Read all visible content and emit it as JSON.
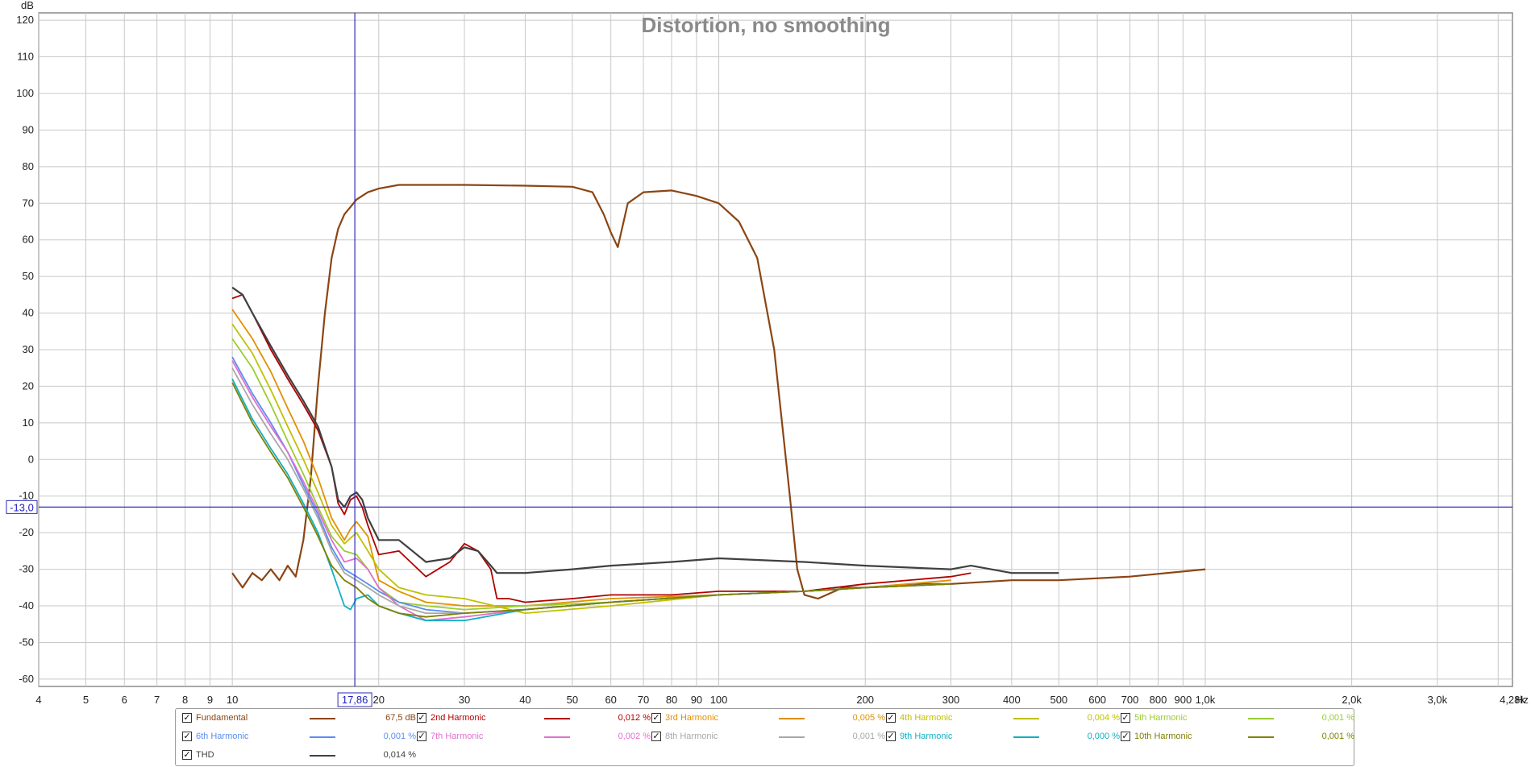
{
  "chart_data": {
    "type": "line",
    "title": "Distortion, no smoothing",
    "ylabel": "dB",
    "xlabel": "Hz",
    "x_scale": "log",
    "xlim": [
      4,
      4280
    ],
    "ylim": [
      -62,
      122
    ],
    "grid": true,
    "y_ticks": [
      "120",
      "110",
      "100",
      "90",
      "80",
      "70",
      "60",
      "50",
      "40",
      "30",
      "20",
      "10",
      "0",
      "-10",
      "-20",
      "-30",
      "-40",
      "-50",
      "-60"
    ],
    "x_ticks": [
      {
        "v": 4,
        "label": "4"
      },
      {
        "v": 5,
        "label": "5"
      },
      {
        "v": 6,
        "label": "6"
      },
      {
        "v": 7,
        "label": "7"
      },
      {
        "v": 8,
        "label": "8"
      },
      {
        "v": 9,
        "label": "9"
      },
      {
        "v": 10,
        "label": "10"
      },
      {
        "v": 20,
        "label": "20"
      },
      {
        "v": 30,
        "label": "30"
      },
      {
        "v": 40,
        "label": "40"
      },
      {
        "v": 50,
        "label": "50"
      },
      {
        "v": 60,
        "label": "60"
      },
      {
        "v": 70,
        "label": "70"
      },
      {
        "v": 80,
        "label": "80"
      },
      {
        "v": 90,
        "label": "90"
      },
      {
        "v": 100,
        "label": "100"
      },
      {
        "v": 200,
        "label": "200"
      },
      {
        "v": 300,
        "label": "300"
      },
      {
        "v": 400,
        "label": "400"
      },
      {
        "v": 500,
        "label": "500"
      },
      {
        "v": 600,
        "label": "600"
      },
      {
        "v": 700,
        "label": "700"
      },
      {
        "v": 800,
        "label": "800"
      },
      {
        "v": 900,
        "label": "900"
      },
      {
        "v": 1000,
        "label": "1,0k"
      },
      {
        "v": 2000,
        "label": "2,0k"
      },
      {
        "v": 3000,
        "label": "3,0k"
      },
      {
        "v": 4280,
        "label": "4,28k"
      }
    ],
    "cursor": {
      "x": 17.86,
      "x_label": "17,86",
      "y": -13.0,
      "y_label": "-13,0",
      "color": "#2a2ab8"
    },
    "series": [
      {
        "name": "Fundamental",
        "color": "#8b4513",
        "value": "67,5 dB",
        "x": [
          10,
          10.5,
          11,
          11.5,
          12,
          12.5,
          13,
          13.5,
          14,
          14.5,
          15,
          15.5,
          16,
          16.5,
          17,
          17.5,
          18,
          19,
          20,
          22,
          25,
          30,
          40,
          50,
          55,
          58,
          60,
          62,
          65,
          70,
          80,
          90,
          100,
          110,
          120,
          130,
          140,
          145,
          150,
          160,
          180,
          200,
          250,
          300,
          400,
          500,
          700,
          1000
        ],
        "y": [
          -31,
          -35,
          -31,
          -33,
          -30,
          -33,
          -29,
          -32,
          -22,
          -5,
          20,
          40,
          55,
          63,
          67,
          69,
          71,
          73,
          74,
          75,
          75,
          75,
          74.8,
          74.5,
          73,
          67,
          62,
          58,
          70,
          73,
          73.5,
          72,
          70,
          65,
          55,
          30,
          -10,
          -30,
          -37,
          -38,
          -35,
          -35,
          -34,
          -34,
          -33,
          -33,
          -32,
          -30
        ]
      },
      {
        "name": "2nd Harmonic",
        "color": "#b00000",
        "value": "0,012 %",
        "x": [
          10,
          10.5,
          11,
          12,
          13,
          14,
          15,
          16,
          16.5,
          17,
          17.5,
          18,
          18.5,
          19,
          20,
          22,
          25,
          28,
          30,
          32,
          34,
          35,
          37,
          40,
          50,
          60,
          80,
          100,
          150,
          200,
          300,
          330
        ],
        "y": [
          44,
          45,
          40,
          30,
          22,
          15,
          8,
          -2,
          -12,
          -15,
          -11,
          -10,
          -13,
          -18,
          -26,
          -25,
          -32,
          -28,
          -23,
          -25,
          -30,
          -38,
          -38,
          -39,
          -38,
          -37,
          -37,
          -36,
          -36,
          -34,
          -32,
          -31
        ]
      },
      {
        "name": "3rd Harmonic",
        "color": "#e09000",
        "value": "0,005 %",
        "x": [
          10,
          11,
          12,
          13,
          14,
          15,
          16,
          17,
          17.5,
          18,
          19,
          20,
          22,
          25,
          30,
          40,
          60,
          100,
          150,
          200,
          300
        ],
        "y": [
          41,
          33,
          24,
          14,
          5,
          -5,
          -16,
          -22,
          -19,
          -17,
          -21,
          -33,
          -36,
          -39,
          -40,
          -40,
          -38,
          -37,
          -36,
          -35,
          -33
        ]
      },
      {
        "name": "4th Harmonic",
        "color": "#c0c000",
        "value": "0,004 %",
        "x": [
          10,
          11,
          12,
          13,
          14,
          15,
          16,
          17,
          18,
          19,
          20,
          22,
          25,
          30,
          40,
          60,
          100,
          150,
          200,
          300
        ],
        "y": [
          37,
          29,
          19,
          9,
          0,
          -9,
          -18,
          -23,
          -20,
          -25,
          -30,
          -35,
          -37,
          -38,
          -42,
          -40,
          -37,
          -36,
          -35,
          -34
        ]
      },
      {
        "name": "5th Harmonic",
        "color": "#9acd32",
        "value": "0,001 %",
        "x": [
          10,
          11,
          12,
          13,
          14,
          15,
          16,
          17,
          18,
          19,
          20,
          22,
          25,
          30,
          40,
          60,
          100,
          150,
          200,
          300
        ],
        "y": [
          33,
          25,
          15,
          5,
          -4,
          -13,
          -21,
          -25,
          -26,
          -30,
          -35,
          -39,
          -40,
          -41,
          -40,
          -39,
          -37,
          -36,
          -35,
          -34
        ]
      },
      {
        "name": "6th Harmonic",
        "color": "#5b8def",
        "value": "0,001 %",
        "x": [
          10,
          11,
          12,
          13,
          14,
          15,
          16,
          17,
          18,
          19,
          20,
          22,
          25,
          30,
          40,
          60,
          100,
          150,
          200,
          300
        ],
        "y": [
          28,
          18,
          10,
          2,
          -7,
          -15,
          -24,
          -30,
          -32,
          -34,
          -36,
          -39,
          -41,
          -42,
          -41,
          -39,
          -37,
          -36,
          -35,
          -34
        ]
      },
      {
        "name": "7th Harmonic",
        "color": "#e070d0",
        "value": "0,002 %",
        "x": [
          10,
          11,
          12,
          13,
          14,
          15,
          16,
          17,
          18,
          19,
          20,
          22,
          25,
          30,
          40,
          60,
          100,
          150,
          200,
          300
        ],
        "y": [
          27,
          17,
          9,
          2,
          -6,
          -14,
          -22,
          -28,
          -27,
          -30,
          -35,
          -40,
          -44,
          -43,
          -41,
          -39,
          -37,
          -36,
          -35,
          -34
        ]
      },
      {
        "name": "8th Harmonic",
        "color": "#a8a8a8",
        "value": "0,001 %",
        "x": [
          10,
          11,
          12,
          13,
          14,
          15,
          16,
          17,
          18,
          19,
          20,
          22,
          25,
          30,
          40,
          60,
          100,
          150,
          200,
          300
        ],
        "y": [
          25,
          15,
          7,
          0,
          -8,
          -16,
          -25,
          -31,
          -33,
          -35,
          -37,
          -40,
          -42,
          -42,
          -41,
          -39,
          -37,
          -36,
          -35,
          -34
        ]
      },
      {
        "name": "9th Harmonic",
        "color": "#10b0c0",
        "value": "0,000 %",
        "x": [
          10,
          11,
          12,
          13,
          14,
          15,
          16,
          17,
          17.5,
          18,
          19,
          20,
          22,
          25,
          30,
          40,
          60,
          100,
          150,
          200,
          300
        ],
        "y": [
          22,
          11,
          3,
          -4,
          -12,
          -20,
          -30,
          -40,
          -41,
          -38,
          -37,
          -40,
          -42,
          -44,
          -44,
          -41,
          -39,
          -37,
          -36,
          -35,
          -34
        ]
      },
      {
        "name": "10th Harmonic",
        "color": "#808000",
        "value": "0,001 %",
        "x": [
          10,
          11,
          12,
          13,
          14,
          15,
          16,
          17,
          18,
          19,
          20,
          22,
          25,
          30,
          40,
          60,
          100,
          150,
          200,
          300
        ],
        "y": [
          21,
          10,
          2,
          -5,
          -13,
          -21,
          -29,
          -33,
          -35,
          -38,
          -40,
          -42,
          -43,
          -42,
          -41,
          -39,
          -37,
          -36,
          -35,
          -34
        ]
      },
      {
        "name": "THD",
        "color": "#404040",
        "value": "0,014 %",
        "x": [
          10,
          10.5,
          11,
          12,
          13,
          14,
          15,
          16,
          16.5,
          17,
          17.5,
          18,
          18.5,
          19,
          20,
          22,
          25,
          28,
          30,
          32,
          34,
          35,
          37,
          40,
          50,
          60,
          80,
          100,
          150,
          200,
          300,
          330,
          400,
          500
        ],
        "y": [
          47,
          45,
          40,
          31,
          23,
          16,
          9,
          -2,
          -11,
          -13,
          -10,
          -9,
          -11,
          -16,
          -22,
          -22,
          -28,
          -27,
          -24,
          -25,
          -29,
          -31,
          -31,
          -31,
          -30,
          -29,
          -28,
          -27,
          -28,
          -29,
          -30,
          -29,
          -31,
          -31
        ]
      }
    ]
  }
}
